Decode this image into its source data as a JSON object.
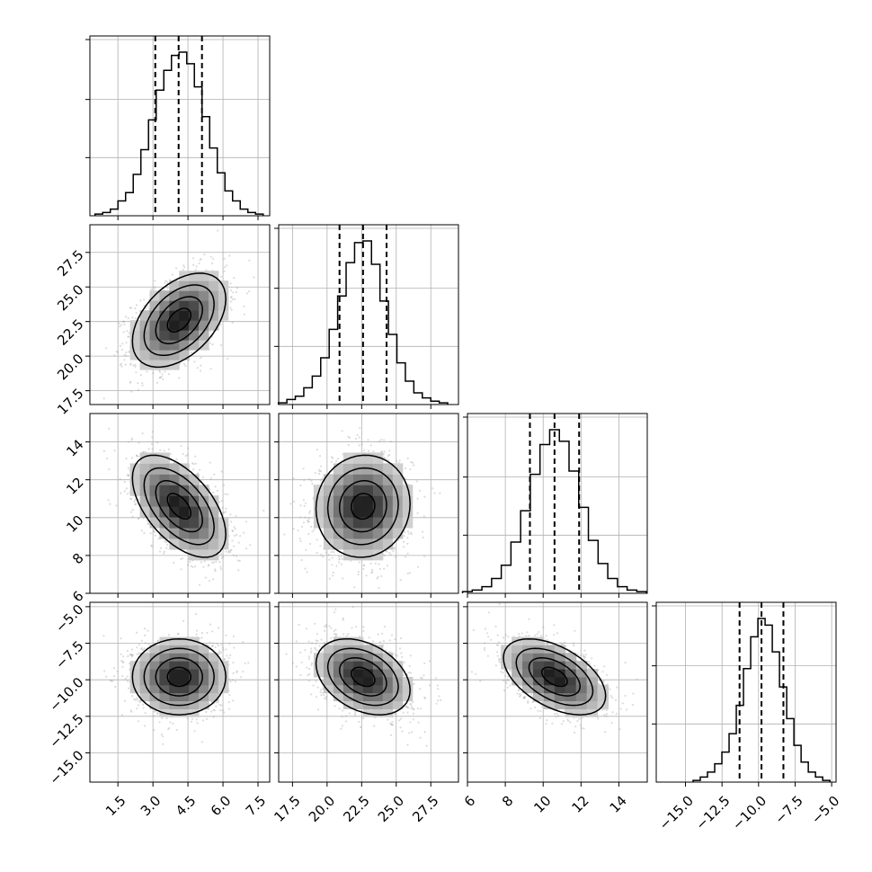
{
  "chart_data": {
    "type": "corner",
    "grid": true,
    "parameters": [
      {
        "range": [
          0.3,
          8.0
        ],
        "ticks": [
          "1.5",
          "3.0",
          "4.5",
          "6.0",
          "7.5"
        ],
        "tick_values": [
          1.5,
          3.0,
          4.5,
          6.0,
          7.5
        ],
        "mean": 4.12,
        "sigma": 1.0,
        "quantiles": [
          3.1,
          4.1,
          5.1
        ],
        "hist_counts": [
          1,
          2,
          4,
          9,
          14,
          25,
          40,
          58,
          76,
          88,
          97,
          99,
          92,
          78,
          60,
          41,
          26,
          15,
          9,
          4,
          2,
          1
        ]
      },
      {
        "range": [
          16.5,
          29.5
        ],
        "ticks": [
          "17.5",
          "20.0",
          "22.5",
          "25.0",
          "27.5"
        ],
        "tick_values": [
          17.5,
          20.0,
          22.5,
          25.0,
          27.5
        ],
        "mean": 22.6,
        "sigma": 1.7,
        "quantiles": [
          20.9,
          22.6,
          24.3
        ],
        "hist_counts": [
          1,
          3,
          5,
          10,
          17,
          28,
          45,
          65,
          85,
          97,
          98,
          84,
          62,
          42,
          25,
          14,
          7,
          4,
          2,
          1
        ]
      },
      {
        "range": [
          6.0,
          15.5
        ],
        "ticks": [
          "6",
          "8",
          "10",
          "12",
          "14"
        ],
        "tick_values": [
          6,
          8,
          10,
          12,
          14
        ],
        "mean": 10.6,
        "sigma": 1.35,
        "quantiles": [
          9.3,
          10.6,
          11.9
        ],
        "hist_counts": [
          1,
          2,
          4,
          9,
          17,
          31,
          50,
          72,
          90,
          99,
          92,
          74,
          52,
          32,
          18,
          9,
          4,
          2,
          1
        ]
      },
      {
        "range": [
          -17.0,
          -4.7
        ],
        "ticks": [
          "−15.0",
          "−12.5",
          "−10.0",
          "−7.5",
          "−5.0"
        ],
        "tick_values": [
          -15.0,
          -12.5,
          -10.0,
          -7.5,
          -5.0
        ],
        "mean": -9.8,
        "sigma": 1.3,
        "quantiles": [
          -11.3,
          -9.8,
          -8.3
        ],
        "hist_counts": [
          1,
          3,
          6,
          11,
          18,
          29,
          46,
          68,
          87,
          98,
          94,
          78,
          57,
          38,
          22,
          12,
          6,
          3,
          1
        ]
      }
    ],
    "correlations": [
      [
        1.0,
        0.45,
        -0.55,
        0.0
      ],
      [
        0.45,
        1.0,
        0.05,
        -0.35
      ],
      [
        -0.55,
        0.05,
        1.0,
        -0.5
      ],
      [
        0.0,
        -0.35,
        -0.5,
        1.0
      ]
    ],
    "colors": {
      "line": "#000000",
      "scatter": "#9a9a9a",
      "grid": "#b0b0b0",
      "hist_fill_dark": "#1a1a1a"
    }
  }
}
